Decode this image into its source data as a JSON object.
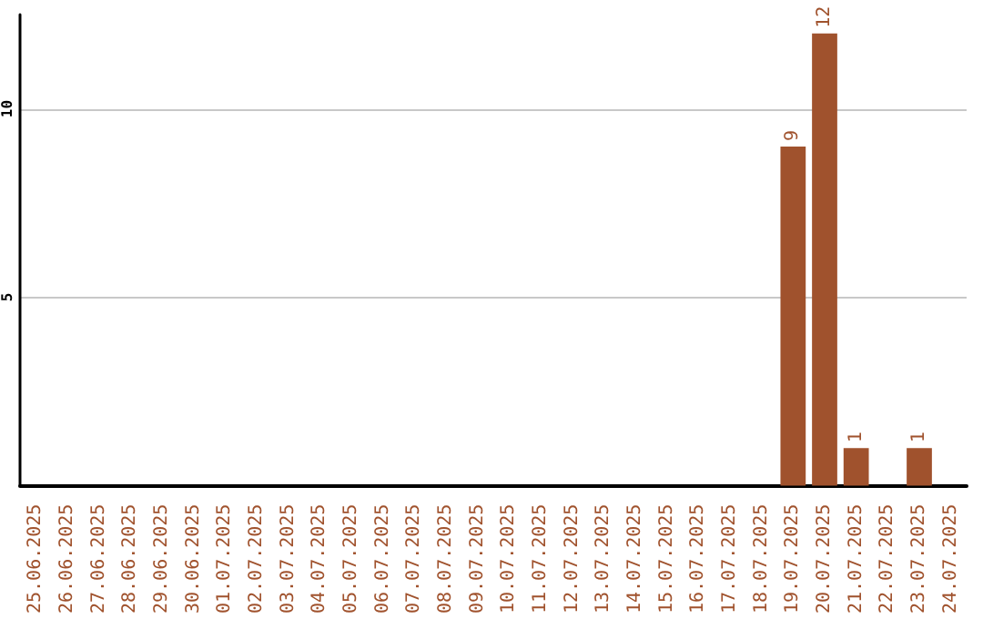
{
  "chart_data": {
    "type": "bar",
    "categories": [
      "25.06.2025",
      "26.06.2025",
      "27.06.2025",
      "28.06.2025",
      "29.06.2025",
      "30.06.2025",
      "01.07.2025",
      "02.07.2025",
      "03.07.2025",
      "04.07.2025",
      "05.07.2025",
      "06.07.2025",
      "07.07.2025",
      "08.07.2025",
      "09.07.2025",
      "10.07.2025",
      "11.07.2025",
      "12.07.2025",
      "13.07.2025",
      "14.07.2025",
      "15.07.2025",
      "16.07.2025",
      "17.07.2025",
      "18.07.2025",
      "19.07.2025",
      "20.07.2025",
      "21.07.2025",
      "22.07.2025",
      "23.07.2025",
      "24.07.2025"
    ],
    "values": [
      0,
      0,
      0,
      0,
      0,
      0,
      0,
      0,
      0,
      0,
      0,
      0,
      0,
      0,
      0,
      0,
      0,
      0,
      0,
      0,
      0,
      0,
      0,
      0,
      9,
      12,
      1,
      0,
      1,
      0
    ],
    "value_labels": [
      null,
      null,
      null,
      null,
      null,
      null,
      null,
      null,
      null,
      null,
      null,
      null,
      null,
      null,
      null,
      null,
      null,
      null,
      null,
      null,
      null,
      null,
      null,
      null,
      "9",
      "12",
      "1",
      null,
      "1",
      null
    ],
    "color": "#a0522d",
    "ylim": [
      0,
      12.5
    ],
    "yticks": [
      {
        "value": 0,
        "label": null
      },
      5,
      10
    ],
    "grid": "y"
  }
}
